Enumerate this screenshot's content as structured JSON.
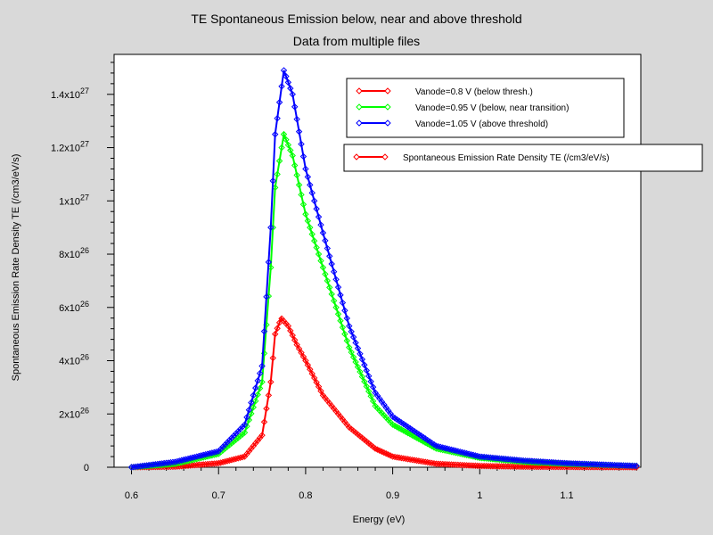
{
  "title": "TE Spontaneous Emission below, near and above threshold",
  "subtitle": "Data from multiple files",
  "chart_data": {
    "type": "line",
    "xlabel": "Energy (eV)",
    "ylabel": "Spontaneous Emission Rate Density TE (/cm3/eV/s)",
    "xlim": [
      0.58,
      1.185
    ],
    "ylim": [
      0,
      1.55e+27
    ],
    "x_ticks": [
      0.6,
      0.7,
      0.8,
      0.9,
      1,
      1.1
    ],
    "x_tick_labels": [
      "0.6",
      "0.7",
      "0.8",
      "0.9",
      "1",
      "1.1"
    ],
    "y_ticks": [
      {
        "value": 0,
        "base": "0",
        "exp": ""
      },
      {
        "value": 2e+26,
        "base": "2x10",
        "exp": "26"
      },
      {
        "value": 4e+26,
        "base": "4x10",
        "exp": "26"
      },
      {
        "value": 6e+26,
        "base": "6x10",
        "exp": "26"
      },
      {
        "value": 8e+26,
        "base": "8x10",
        "exp": "26"
      },
      {
        "value": 1e+27,
        "base": "1x10",
        "exp": "27"
      },
      {
        "value": 1.2e+27,
        "base": "1.2x10",
        "exp": "27"
      },
      {
        "value": 1.4e+27,
        "base": "1.4x10",
        "exp": "27"
      }
    ],
    "legends": [
      {
        "entries": [
          {
            "name": "Vanode=0.8 V (below thresh.)",
            "color": "#ff0000"
          },
          {
            "name": "Vanode=0.95 V (below, near transition)",
            "color": "#00ff00"
          },
          {
            "name": "Vanode=1.05 V (above threshold)",
            "color": "#0000ff"
          }
        ]
      },
      {
        "entries": [
          {
            "name": "Spontaneous Emission Rate Density TE (/cm3/eV/s)",
            "color": "#ff0000"
          }
        ]
      }
    ],
    "series": [
      {
        "name": "Vanode=0.8 V (below thresh.)",
        "color": "#ff0000",
        "x": [
          0.6,
          0.65,
          0.7,
          0.73,
          0.75,
          0.76,
          0.765,
          0.772,
          0.78,
          0.79,
          0.8,
          0.82,
          0.85,
          0.88,
          0.9,
          0.95,
          1.0,
          1.05,
          1.1,
          1.18
        ],
        "y": [
          0,
          2e+24,
          1.5e+25,
          4e+25,
          1.2e+26,
          3.2e+26,
          5e+26,
          5.6e+26,
          5.3e+26,
          4.6e+26,
          4e+26,
          2.7e+26,
          1.5e+26,
          7e+25,
          4e+25,
          1.3e+25,
          5e+24,
          2e+24,
          1e+24,
          0
        ]
      },
      {
        "name": "Vanode=0.95 V (below, near transition)",
        "color": "#00ff00",
        "x": [
          0.6,
          0.65,
          0.7,
          0.73,
          0.75,
          0.76,
          0.765,
          0.775,
          0.785,
          0.8,
          0.82,
          0.85,
          0.88,
          0.9,
          0.95,
          1.0,
          1.05,
          1.1,
          1.18
        ],
        "y": [
          0,
          1.2e+25,
          5e+25,
          1.3e+26,
          3.2e+26,
          7.5e+26,
          1.05e+27,
          1.25e+27,
          1.17e+27,
          9.5e+26,
          7.5e+26,
          4.5e+26,
          2.3e+26,
          1.6e+26,
          7e+25,
          3.5e+25,
          2e+25,
          1.2e+25,
          5e+24
        ]
      },
      {
        "name": "Vanode=1.05 V (above threshold)",
        "color": "#0000ff",
        "x": [
          0.6,
          0.65,
          0.7,
          0.73,
          0.75,
          0.76,
          0.765,
          0.775,
          0.785,
          0.8,
          0.82,
          0.85,
          0.88,
          0.9,
          0.95,
          1.0,
          1.05,
          1.1,
          1.18
        ],
        "y": [
          0,
          2e+25,
          6e+25,
          1.6e+26,
          3.8e+26,
          9e+26,
          1.25e+27,
          1.49e+27,
          1.4e+27,
          1.12e+27,
          8.8e+26,
          5.3e+26,
          2.8e+26,
          1.9e+26,
          8e+25,
          4e+25,
          2.5e+25,
          1.5e+25,
          5e+24
        ]
      }
    ]
  }
}
